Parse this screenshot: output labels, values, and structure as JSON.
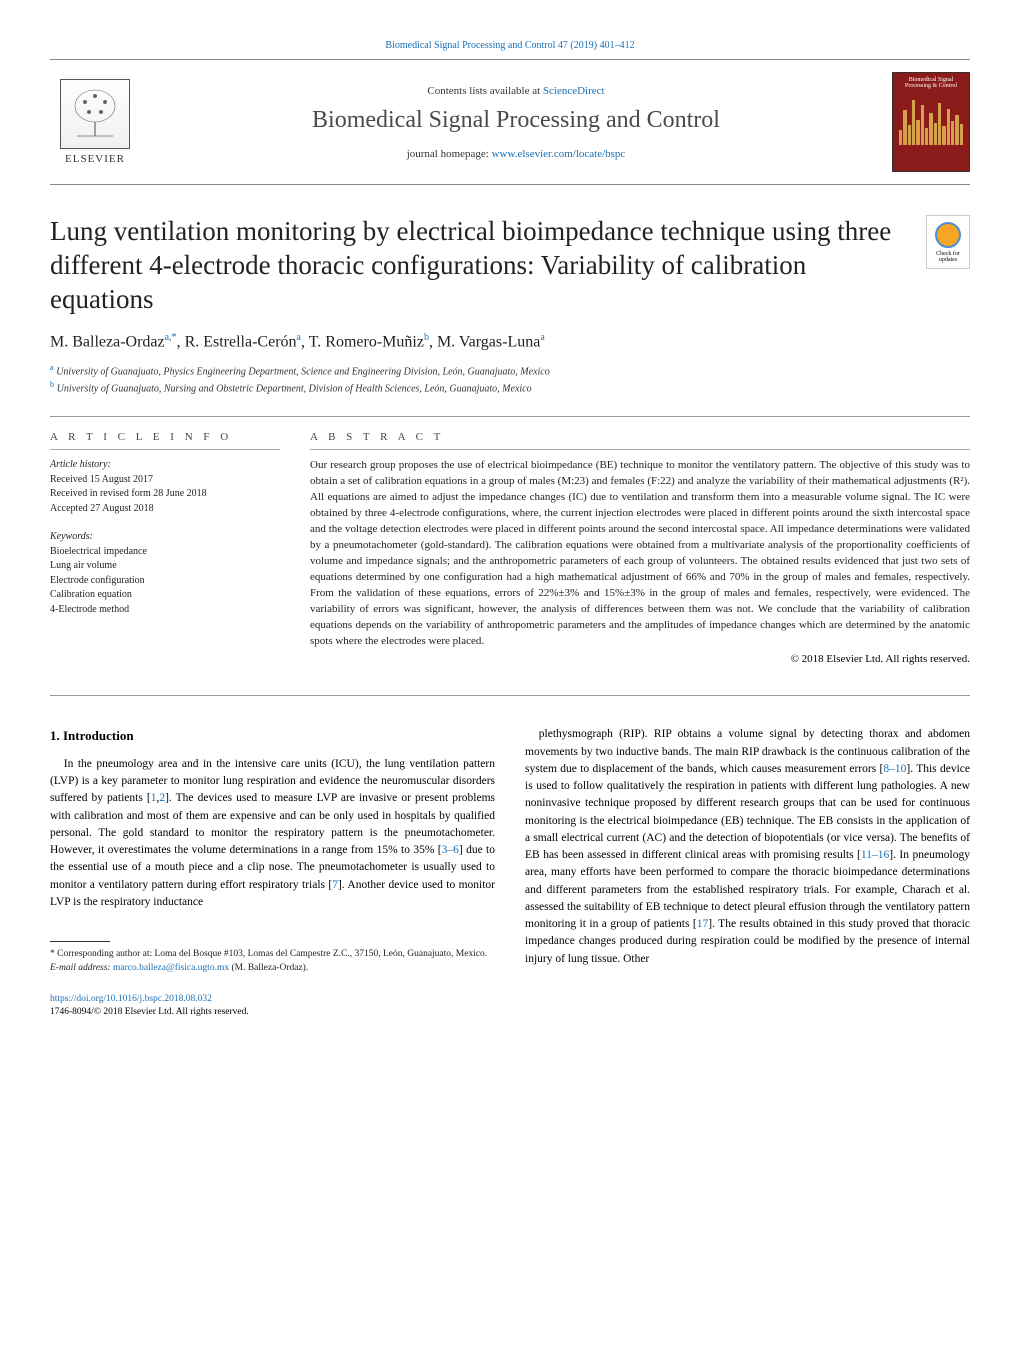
{
  "top_link": "Biomedical Signal Processing and Control 47 (2019) 401–412",
  "header": {
    "contents_prefix": "Contents lists available at ",
    "contents_link": "ScienceDirect",
    "journal_name": "Biomedical Signal Processing and Control",
    "homepage_prefix": "journal homepage: ",
    "homepage_link": "www.elsevier.com/locate/bspc",
    "elsevier": "ELSEVIER",
    "cover_label": "Biomedical Signal Processing & Control"
  },
  "title": "Lung ventilation monitoring by electrical bioimpedance technique using three different 4-electrode thoracic configurations: Variability of calibration equations",
  "check_updates": "Check for updates",
  "authors_html": "M. Balleza-Ordaz|a,*|, R. Estrella-Cerón|a|, T. Romero-Muñiz|b|, M. Vargas-Luna|a|",
  "affiliations": {
    "a": "University of Guanajuato, Physics Engineering Department, Science and Engineering Division, León, Guanajuato, Mexico",
    "b": "University of Guanajuato, Nursing and Obstetric Department, Division of Health Sciences, León, Guanajuato, Mexico"
  },
  "article_info": {
    "heading": "A R T I C L E   I N F O",
    "history_title": "Article history:",
    "history": [
      "Received 15 August 2017",
      "Received in revised form 28 June 2018",
      "Accepted 27 August 2018"
    ],
    "keywords_title": "Keywords:",
    "keywords": [
      "Bioelectrical impedance",
      "Lung air volume",
      "Electrode configuration",
      "Calibration equation",
      "4-Electrode method"
    ]
  },
  "abstract": {
    "heading": "A B S T R A C T",
    "text": "Our research group proposes the use of electrical bioimpedance (BE) technique to monitor the ventilatory pattern. The objective of this study was to obtain a set of calibration equations in a group of males (M:23) and females (F:22) and analyze the variability of their mathematical adjustments (R²). All equations are aimed to adjust the impedance changes (IC) due to ventilation and transform them into a measurable volume signal. The IC were obtained by three 4-electrode configurations, where, the current injection electrodes were placed in different points around the sixth intercostal space and the voltage detection electrodes were placed in different points around the second intercostal space. All impedance determinations were validated by a pneumotachometer (gold-standard). The calibration equations were obtained from a multivariate analysis of the proportionality coefficients of volume and impedance signals; and the anthropometric parameters of each group of volunteers. The obtained results evidenced that just two sets of equations determined by one configuration had a high mathematical adjustment of 66% and 70% in the group of males and females, respectively. From the validation of these equations, errors of 22%±3% and 15%±3% in the group of males and females, respectively, were evidenced. The variability of errors was significant, however, the analysis of differences between them was not. We conclude that the variability of calibration equations depends on the variability of anthropometric parameters and the amplitudes of impedance changes which are determined by the anatomic spots where the electrodes were placed.",
    "copyright": "© 2018 Elsevier Ltd. All rights reserved."
  },
  "intro": {
    "heading": "1.  Introduction",
    "col1": "In the pneumology area and in the intensive care units (ICU), the lung ventilation pattern (LVP) is a key parameter to monitor lung respiration and evidence the neuromuscular disorders suffered by patients [1,2]. The devices used to measure LVP are invasive or present problems with calibration and most of them are expensive and can be only used in hospitals by qualified personal. The gold standard to monitor the respiratory pattern is the pneumotachometer. However, it overestimates the volume determinations in a range from 15% to 35% [3–6] due to the essential use of a mouth piece and a clip nose. The pneumotachometer is usually used to monitor a ventilatory pattern during effort respiratory trials [7]. Another device used to monitor LVP is the respiratory inductance",
    "col2": "plethysmograph (RIP). RIP obtains a volume signal by detecting thorax and abdomen movements by two inductive bands. The main RIP drawback is the continuous calibration of the system due to displacement of the bands, which causes measurement errors [8–10]. This device is used to follow qualitatively the respiration in patients with different lung pathologies. A new noninvasive technique proposed by different research groups that can be used for continuous monitoring is the electrical bioimpedance (EB) technique. The EB consists in the application of a small electrical current (AC) and the detection of biopotentials (or vice versa). The benefits of EB has been assessed in different clinical areas with promising results [11–16]. In pneumology area, many efforts have been performed to compare the thoracic bioimpedance determinations and different parameters from the established respiratory trials. For example, Charach et al. assessed the suitability of EB technique to detect pleural effusion through the ventilatory pattern monitoring it in a group of patients [17]. The results obtained in this study proved that thoracic impedance changes produced during respiration could be modified by the presence of internal injury of lung tissue. Other"
  },
  "footnote": {
    "corr": "* Corresponding author at: Loma del Bosque #103, Lomas del Campestre Z.C., 37150, León, Guanajuato, Mexico.",
    "email_label": "E-mail address: ",
    "email": "marco.balleza@fisica.ugto.mx",
    "email_owner": " (M. Balleza-Ordaz)."
  },
  "footer": {
    "doi": "https://doi.org/10.1016/j.bspc.2018.08.032",
    "issn_line": "1746-8094/© 2018 Elsevier Ltd. All rights reserved."
  },
  "refs": {
    "r1": "1",
    "r2": "2",
    "r3": "3–6",
    "r7": "7",
    "r8": "8–10",
    "r11": "11–16",
    "r17": "17"
  }
}
